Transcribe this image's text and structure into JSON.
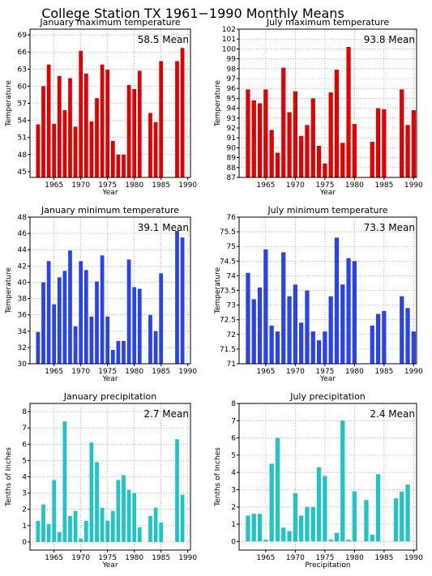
{
  "figure_title": "College Station TX   1961−1990 Monthly Means",
  "chart_data": [
    {
      "type": "bar",
      "title": "January maximum temperature",
      "xlabel": "Year",
      "ylabel": "Temperature",
      "mean_label": "58.5  Mean",
      "ylim": [
        44,
        70
      ],
      "yticks": [
        45,
        48,
        51,
        54,
        57,
        60,
        63,
        66,
        69
      ],
      "xlim": [
        1960.5,
        1990.5
      ],
      "xticks": [
        1965,
        1970,
        1975,
        1980,
        1985,
        1990
      ],
      "color": "#e00000",
      "x": [
        1961,
        1962,
        1963,
        1964,
        1965,
        1966,
        1967,
        1968,
        1969,
        1970,
        1971,
        1972,
        1973,
        1974,
        1975,
        1976,
        1977,
        1978,
        1979,
        1980,
        1981,
        1982,
        1983,
        1984,
        1985,
        1986,
        1987,
        1988,
        1989,
        1990
      ],
      "values": [
        null,
        53.3,
        60.0,
        63.8,
        53.4,
        61.8,
        55.8,
        61.4,
        52.9,
        66.2,
        62.2,
        53.8,
        57.9,
        63.8,
        62.9,
        50.4,
        48.0,
        48.0,
        60.2,
        59.5,
        62.7,
        null,
        55.3,
        53.7,
        64.4,
        null,
        null,
        64.4,
        66.7,
        null
      ]
    },
    {
      "type": "bar",
      "title": "July maximum temperature",
      "xlabel": "Year",
      "ylabel": "Temperature",
      "mean_label": "93.8  Mean",
      "ylim": [
        87,
        102
      ],
      "yticks": [
        87,
        88,
        89,
        90,
        91,
        92,
        93,
        94,
        95,
        96,
        97,
        98,
        99,
        100,
        101,
        102
      ],
      "xlim": [
        1960.5,
        1990.5
      ],
      "xticks": [
        1965,
        1970,
        1975,
        1980,
        1985,
        1990
      ],
      "color": "#e00000",
      "x": [
        1961,
        1962,
        1963,
        1964,
        1965,
        1966,
        1967,
        1968,
        1969,
        1970,
        1971,
        1972,
        1973,
        1974,
        1975,
        1976,
        1977,
        1978,
        1979,
        1980,
        1981,
        1982,
        1983,
        1984,
        1985,
        1986,
        1987,
        1988,
        1989,
        1990
      ],
      "values": [
        null,
        95.9,
        94.8,
        94.5,
        95.9,
        91.8,
        89.5,
        98.1,
        93.6,
        95.7,
        91.2,
        92.3,
        95.0,
        90.2,
        88.4,
        95.6,
        97.9,
        90.5,
        100.2,
        92.4,
        null,
        null,
        90.6,
        94.0,
        93.9,
        null,
        null,
        95.9,
        92.3,
        93.8
      ]
    },
    {
      "type": "bar",
      "title": "January minimum temperature",
      "xlabel": "Year",
      "ylabel": "Temperature",
      "mean_label": "39.1  Mean",
      "ylim": [
        30,
        48
      ],
      "yticks": [
        30,
        32,
        34,
        36,
        38,
        40,
        42,
        44,
        46,
        48
      ],
      "xlim": [
        1960.5,
        1990.5
      ],
      "xticks": [
        1965,
        1970,
        1975,
        1980,
        1985,
        1990
      ],
      "color": "#2a43e8",
      "x": [
        1961,
        1962,
        1963,
        1964,
        1965,
        1966,
        1967,
        1968,
        1969,
        1970,
        1971,
        1972,
        1973,
        1974,
        1975,
        1976,
        1977,
        1978,
        1979,
        1980,
        1981,
        1982,
        1983,
        1984,
        1985,
        1986,
        1987,
        1988,
        1989,
        1990
      ],
      "values": [
        null,
        33.9,
        40.0,
        42.6,
        37.3,
        40.6,
        41.4,
        43.9,
        34.6,
        42.6,
        41.5,
        35.8,
        40.1,
        43.3,
        35.8,
        31.7,
        32.8,
        32.8,
        42.8,
        39.4,
        39.2,
        null,
        36.0,
        34.0,
        41.1,
        null,
        null,
        46.3,
        45.5,
        null
      ]
    },
    {
      "type": "bar",
      "title": "July minimum temperature",
      "xlabel": "Year",
      "ylabel": "Temperature",
      "mean_label": "73.3  Mean",
      "ylim": [
        71,
        76
      ],
      "yticks": [
        71,
        71.5,
        72,
        72.5,
        73,
        73.5,
        74,
        74.5,
        75,
        75.5,
        76
      ],
      "xlim": [
        1960.5,
        1990.5
      ],
      "xticks": [
        1965,
        1970,
        1975,
        1980,
        1985,
        1990
      ],
      "color": "#2a43e8",
      "x": [
        1961,
        1962,
        1963,
        1964,
        1965,
        1966,
        1967,
        1968,
        1969,
        1970,
        1971,
        1972,
        1973,
        1974,
        1975,
        1976,
        1977,
        1978,
        1979,
        1980,
        1981,
        1982,
        1983,
        1984,
        1985,
        1986,
        1987,
        1988,
        1989,
        1990
      ],
      "values": [
        null,
        74.1,
        73.2,
        73.6,
        74.9,
        72.3,
        72.1,
        74.8,
        73.3,
        73.7,
        72.4,
        73.5,
        72.1,
        71.8,
        72.1,
        73.3,
        75.3,
        73.7,
        74.6,
        74.5,
        null,
        null,
        72.3,
        72.7,
        72.8,
        null,
        null,
        73.3,
        72.9,
        72.1
      ]
    },
    {
      "type": "bar",
      "title": "January precipitation",
      "xlabel": "Year",
      "ylabel": "Tenths of Inches",
      "mean_label": "2.7  Mean",
      "ylim": [
        -0.5,
        8.5
      ],
      "yticks": [
        0,
        1,
        2,
        3,
        4,
        5,
        6,
        7,
        8
      ],
      "xlim": [
        1960.5,
        1990.5
      ],
      "xticks": [
        1965,
        1970,
        1975,
        1980,
        1985,
        1990
      ],
      "color": "#20c4c4",
      "x": [
        1961,
        1962,
        1963,
        1964,
        1965,
        1966,
        1967,
        1968,
        1969,
        1970,
        1971,
        1972,
        1973,
        1974,
        1975,
        1976,
        1977,
        1978,
        1979,
        1980,
        1981,
        1982,
        1983,
        1984,
        1985,
        1986,
        1987,
        1988,
        1989,
        1990
      ],
      "values": [
        null,
        1.3,
        2.3,
        1.1,
        3.8,
        0.6,
        7.4,
        1.6,
        1.9,
        0.2,
        1.3,
        6.1,
        4.9,
        2.1,
        1.3,
        1.9,
        3.8,
        4.1,
        3.2,
        3.0,
        0.9,
        null,
        1.6,
        2.1,
        1.2,
        null,
        null,
        6.3,
        2.9,
        null
      ]
    },
    {
      "type": "bar",
      "title": "July precipitation",
      "xlabel": "Precipitation",
      "ylabel": "Tenths of Inches",
      "mean_label": "2.4  Mean",
      "ylim": [
        -0.5,
        8
      ],
      "yticks": [
        0,
        1,
        2,
        3,
        4,
        5,
        6,
        7,
        8
      ],
      "xlim": [
        1960.5,
        1990.5
      ],
      "xticks": [
        1965,
        1970,
        1975,
        1980,
        1985,
        1990
      ],
      "color": "#20c4c4",
      "x": [
        1961,
        1962,
        1963,
        1964,
        1965,
        1966,
        1967,
        1968,
        1969,
        1970,
        1971,
        1972,
        1973,
        1974,
        1975,
        1976,
        1977,
        1978,
        1979,
        1980,
        1981,
        1982,
        1983,
        1984,
        1985,
        1986,
        1987,
        1988,
        1989,
        1990
      ],
      "values": [
        null,
        1.5,
        1.6,
        1.6,
        0.1,
        4.5,
        6.0,
        0.8,
        0.6,
        2.8,
        1.5,
        2.0,
        2.0,
        4.3,
        3.8,
        0.1,
        0.5,
        7.0,
        0.1,
        2.9,
        null,
        2.4,
        0.4,
        3.9,
        null,
        null,
        2.5,
        2.9,
        3.3,
        null
      ]
    }
  ]
}
